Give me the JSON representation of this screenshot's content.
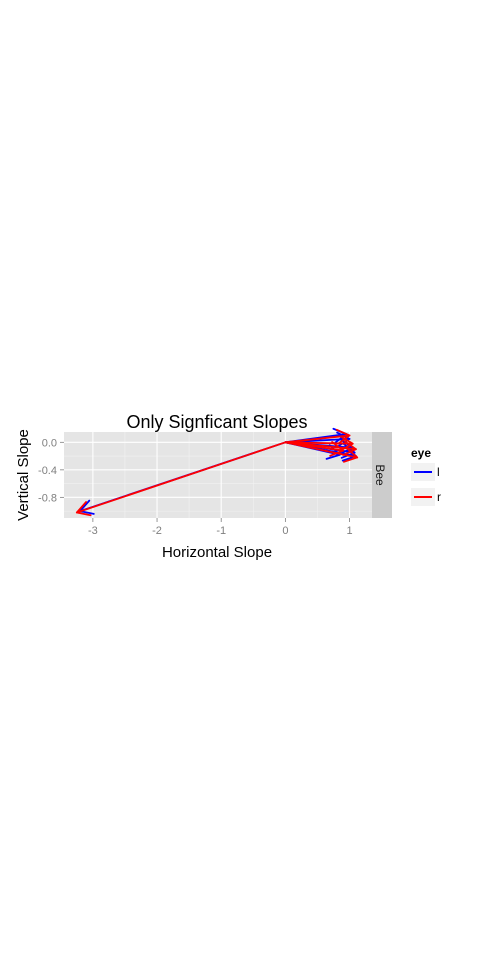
{
  "chart_data": {
    "type": "line",
    "subtype": "arrow-segments",
    "title": "Only Signficant Slopes",
    "xlabel": "Horizontal Slope",
    "ylabel": "Vertical Slope",
    "xlim": [
      -3.45,
      1.35
    ],
    "ylim": [
      -1.1,
      0.15
    ],
    "x_ticks": [
      -3,
      -2,
      -1,
      0,
      1
    ],
    "x_tick_labels": [
      "-3",
      "-2",
      "-1",
      "0",
      "1"
    ],
    "y_ticks": [
      0.0,
      -0.4,
      -0.8
    ],
    "y_tick_labels": [
      "0.0",
      "-0.4",
      "-0.8"
    ],
    "facet": "Bee",
    "grid": true,
    "legend": {
      "title": "eye",
      "position": "right",
      "entries": [
        {
          "label": "l",
          "color": "#0000ff"
        },
        {
          "label": "r",
          "color": "#ff0000"
        }
      ]
    },
    "series": [
      {
        "name": "l",
        "color": "#0000ff",
        "segments": [
          {
            "x0": 0,
            "y0": 0,
            "x1": -3.2,
            "y1": -1.0
          },
          {
            "x0": 0,
            "y0": 0,
            "x1": 0.95,
            "y1": 0.12
          },
          {
            "x0": 0,
            "y0": 0,
            "x1": 1.0,
            "y1": 0.05
          },
          {
            "x0": 0,
            "y0": 0,
            "x1": 1.05,
            "y1": -0.08
          },
          {
            "x0": 0,
            "y0": 0,
            "x1": 1.08,
            "y1": -0.15
          },
          {
            "x0": 0,
            "y0": 0,
            "x1": 1.1,
            "y1": -0.2
          },
          {
            "x0": 0,
            "y0": 0,
            "x1": 0.85,
            "y1": -0.18
          }
        ]
      },
      {
        "name": "r",
        "color": "#ff0000",
        "segments": [
          {
            "x0": 0,
            "y0": 0,
            "x1": -3.25,
            "y1": -1.02
          },
          {
            "x0": 0,
            "y0": 0,
            "x1": 1.0,
            "y1": 0.1
          },
          {
            "x0": 0,
            "y0": 0,
            "x1": 1.05,
            "y1": -0.02
          },
          {
            "x0": 0,
            "y0": 0,
            "x1": 1.1,
            "y1": -0.1
          },
          {
            "x0": 0,
            "y0": 0,
            "x1": 1.12,
            "y1": -0.22
          },
          {
            "x0": 0,
            "y0": 0,
            "x1": 0.9,
            "y1": -0.12
          }
        ]
      }
    ]
  }
}
